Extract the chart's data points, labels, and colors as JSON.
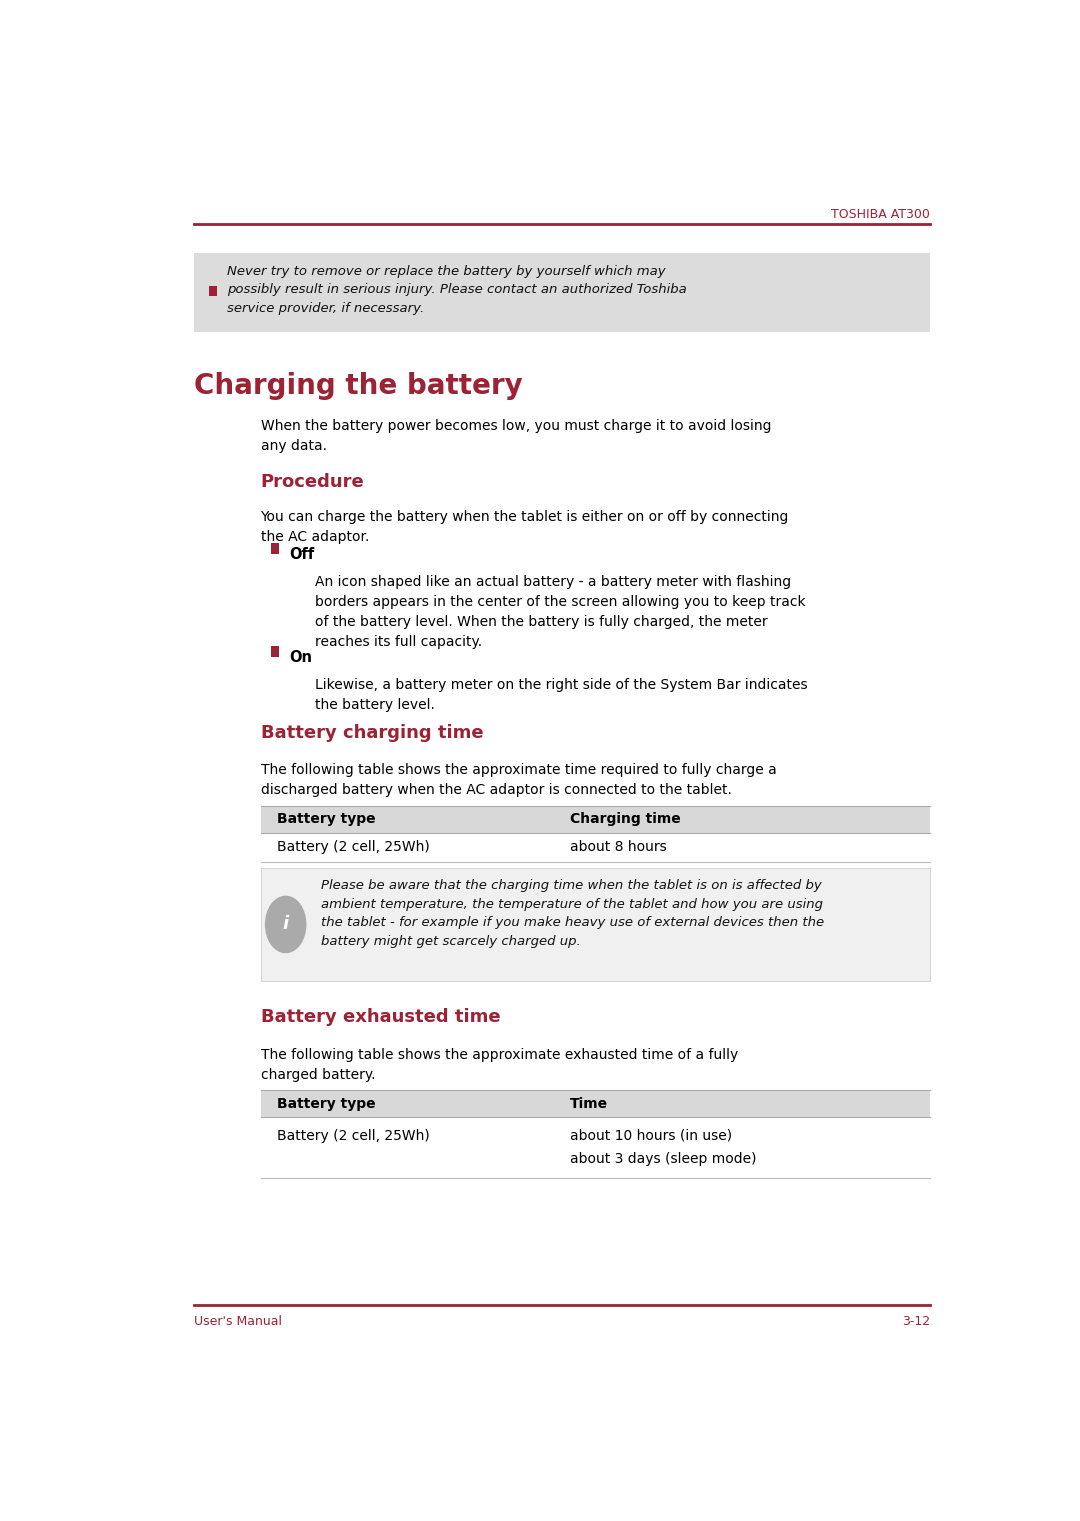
{
  "page_width": 10.8,
  "page_height": 15.21,
  "bg_color": "#ffffff",
  "red_color": "#8B1A1A",
  "dark_red": "#9B2335",
  "header_text": "TOSHIBA AT300",
  "footer_left": "User's Manual",
  "footer_right": "3-12",
  "warning_box_bg": "#DCDCDC",
  "warning_text": "Never try to remove or replace the battery by yourself which may\npossibly result in serious injury. Please contact an authorized Toshiba\nservice provider, if necessary.",
  "section_main_title": "Charging the battery",
  "section_main_body": "When the battery power becomes low, you must charge it to avoid losing\nany data.",
  "section_procedure_title": "Procedure",
  "procedure_body": "You can charge the battery when the tablet is either on or off by connecting\nthe AC adaptor.",
  "bullet_off_title": "Off",
  "bullet_off_body": "An icon shaped like an actual battery - a battery meter with flashing\nborders appears in the center of the screen allowing you to keep track\nof the battery level. When the battery is fully charged, the meter\nreaches its full capacity.",
  "bullet_on_title": "On",
  "bullet_on_body": "Likewise, a battery meter on the right side of the System Bar indicates\nthe battery level.",
  "section_charging_title": "Battery charging time",
  "charging_body": "The following table shows the approximate time required to fully charge a\ndischarged battery when the AC adaptor is connected to the tablet.",
  "table1_header_col1": "Battery type",
  "table1_header_col2": "Charging time",
  "table1_row1_col1": "Battery (2 cell, 25Wh)",
  "table1_row1_col2": "about 8 hours",
  "info_text": "Please be aware that the charging time when the tablet is on is affected by\nambient temperature, the temperature of the tablet and how you are using\nthe tablet - for example if you make heavy use of external devices then the\nbattery might get scarcely charged up.",
  "section_exhausted_title": "Battery exhausted time",
  "exhausted_body": "The following table shows the approximate exhausted time of a fully\ncharged battery.",
  "table2_header_col1": "Battery type",
  "table2_header_col2": "Time",
  "table2_row1_col1": "Battery (2 cell, 25Wh)",
  "table2_row1_col2a": "about 10 hours (in use)",
  "table2_row1_col2b": "about 3 days (sleep mode)"
}
